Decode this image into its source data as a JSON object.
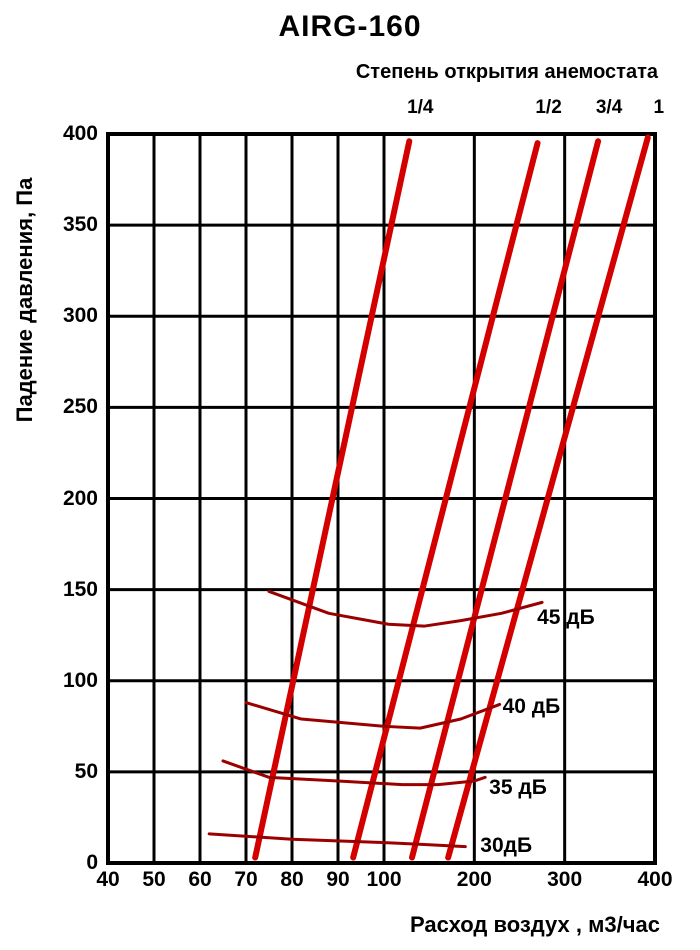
{
  "page": {
    "title": "AIRG-160",
    "subtitle": "Степень открытия анемостата"
  },
  "colors": {
    "opening_line": "#d40000",
    "noise_curve": "#9b0000",
    "grid": "#000000",
    "text": "#000000",
    "background": "#ffffff"
  },
  "chart_data": {
    "type": "line",
    "title": "AIRG-160",
    "subtitle": "Степень открытия анемостата",
    "xlabel": "Расход воздух , м3/час",
    "ylabel": "Падение давления, Па",
    "x_unit": "м3/час",
    "y_unit": "Па",
    "x_scale": "log-segmented",
    "xlim": [
      40,
      400
    ],
    "ylim": [
      0,
      400
    ],
    "x_ticks": [
      40,
      50,
      60,
      70,
      80,
      90,
      100,
      200,
      300,
      400
    ],
    "y_ticks": [
      0,
      50,
      100,
      150,
      200,
      250,
      300,
      350,
      400
    ],
    "grid": true,
    "legend": "inline-labels",
    "series": [
      {
        "name": "opening-1-4",
        "group": "opening",
        "label": "1/4",
        "points": [
          [
            72,
            3
          ],
          [
            128,
            396
          ]
        ]
      },
      {
        "name": "opening-1-2",
        "group": "opening",
        "label": "1/2",
        "points": [
          [
            93.3,
            3
          ],
          [
            270,
            395
          ]
        ]
      },
      {
        "name": "opening-3-4",
        "group": "opening",
        "label": "3/4",
        "points": [
          [
            131,
            3
          ],
          [
            337,
            396
          ]
        ]
      },
      {
        "name": "opening-1",
        "group": "opening",
        "label": "1",
        "points": [
          [
            171,
            3
          ],
          [
            392,
            398
          ]
        ]
      },
      {
        "name": "noise-30",
        "group": "noise",
        "label": "30дБ",
        "points": [
          [
            62,
            16
          ],
          [
            80,
            13
          ],
          [
            110,
            11
          ],
          [
            150,
            10
          ],
          [
            190,
            9
          ]
        ]
      },
      {
        "name": "noise-35",
        "group": "noise",
        "label": "35 дБ",
        "points": [
          [
            65,
            56
          ],
          [
            75,
            47
          ],
          [
            90,
            45
          ],
          [
            120,
            43
          ],
          [
            160,
            43
          ],
          [
            200,
            45
          ],
          [
            212,
            47
          ]
        ]
      },
      {
        "name": "noise-40",
        "group": "noise",
        "label": "40 дБ",
        "points": [
          [
            70,
            88
          ],
          [
            82,
            79
          ],
          [
            100,
            75
          ],
          [
            140,
            74
          ],
          [
            185,
            79
          ],
          [
            228,
            87
          ]
        ]
      },
      {
        "name": "noise-45",
        "group": "noise",
        "label": "45 дБ",
        "points": [
          [
            75,
            149
          ],
          [
            88,
            137
          ],
          [
            105,
            131
          ],
          [
            145,
            130
          ],
          [
            185,
            133
          ],
          [
            230,
            137
          ],
          [
            275,
            143
          ]
        ]
      }
    ]
  }
}
